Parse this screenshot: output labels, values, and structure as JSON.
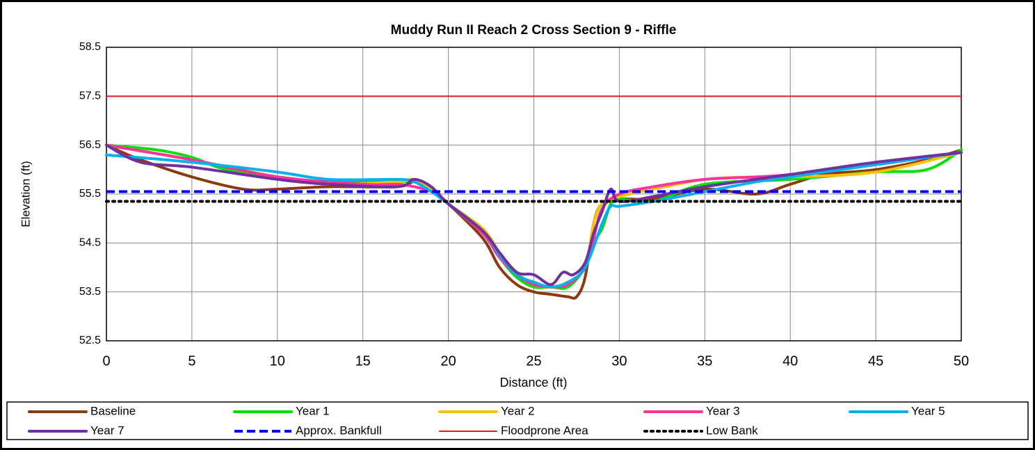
{
  "chart_data": {
    "type": "line",
    "title": "Muddy Run II Reach 2 Cross Section 9 - Riffle",
    "x_label": "Distance (ft)",
    "y_label": "Elevation (ft)",
    "xlim": [
      0,
      50
    ],
    "xticks": [
      0,
      5,
      10,
      15,
      20,
      25,
      30,
      35,
      40,
      45,
      50
    ],
    "ylim": [
      52.5,
      58.5
    ],
    "yticks": [
      52.5,
      53.5,
      54.5,
      55.5,
      56.5,
      57.5,
      58.5
    ],
    "grid": true,
    "legend": "bottom",
    "series": [
      {
        "name": "Baseline",
        "color": "#8B3A0F",
        "width": 4,
        "dash": "solid",
        "smooth": true,
        "x": [
          0,
          2,
          5,
          8,
          10,
          13,
          17,
          18,
          19,
          20,
          22,
          23,
          24,
          25,
          26,
          27,
          27.5,
          28,
          28.5,
          29,
          30,
          32,
          35,
          38,
          40,
          42,
          45,
          48,
          50
        ],
        "values": [
          56.5,
          56.2,
          55.85,
          55.6,
          55.6,
          55.65,
          55.65,
          55.75,
          55.6,
          55.3,
          54.6,
          54.0,
          53.65,
          53.5,
          53.45,
          53.4,
          53.4,
          53.8,
          54.9,
          55.3,
          55.4,
          55.4,
          55.6,
          55.5,
          55.7,
          55.9,
          56.0,
          56.2,
          56.4
        ]
      },
      {
        "name": "Year 1",
        "color": "#00E000",
        "width": 4,
        "dash": "solid",
        "smooth": true,
        "x": [
          0,
          3,
          5,
          7,
          10,
          13,
          17,
          18,
          19,
          20,
          22,
          23,
          24,
          25,
          26,
          27,
          28,
          28.5,
          29,
          29.5,
          30,
          32,
          35,
          40,
          45,
          48,
          50
        ],
        "values": [
          56.5,
          56.4,
          56.25,
          56.0,
          55.85,
          55.75,
          55.75,
          55.75,
          55.6,
          55.3,
          54.7,
          54.2,
          53.8,
          53.6,
          53.6,
          53.6,
          54.0,
          54.5,
          54.8,
          55.3,
          55.4,
          55.35,
          55.7,
          55.8,
          55.95,
          56.0,
          56.4
        ]
      },
      {
        "name": "Year 2",
        "color": "#FFC000",
        "width": 4,
        "dash": "solid",
        "smooth": true,
        "x": [
          0,
          5,
          10,
          13,
          17,
          18,
          19,
          20,
          22,
          23,
          24,
          25,
          26,
          27,
          28,
          28.5,
          29,
          30,
          32,
          35,
          38,
          40,
          45,
          50
        ],
        "values": [
          56.5,
          56.2,
          55.85,
          55.7,
          55.75,
          55.8,
          55.6,
          55.3,
          54.8,
          54.3,
          53.9,
          53.65,
          53.6,
          53.7,
          54.0,
          54.9,
          55.3,
          55.45,
          55.6,
          55.8,
          55.85,
          55.85,
          55.95,
          56.35
        ]
      },
      {
        "name": "Year 3",
        "color": "#FF3399",
        "width": 4,
        "dash": "solid",
        "smooth": true,
        "x": [
          0,
          5,
          10,
          15,
          17,
          18,
          19,
          20,
          22,
          23,
          24,
          25,
          26,
          27,
          28,
          28.5,
          29,
          30,
          32,
          35,
          38,
          40,
          45,
          50
        ],
        "values": [
          56.5,
          56.2,
          55.85,
          55.7,
          55.7,
          55.65,
          55.55,
          55.3,
          54.7,
          54.2,
          53.85,
          53.65,
          53.6,
          53.65,
          54.0,
          54.6,
          55.2,
          55.5,
          55.65,
          55.8,
          55.85,
          55.9,
          56.1,
          56.35
        ]
      },
      {
        "name": "Year 5",
        "color": "#00B0F0",
        "width": 4,
        "dash": "solid",
        "smooth": true,
        "x": [
          0,
          5,
          10,
          13,
          17,
          18,
          19,
          20,
          22,
          23,
          24,
          25,
          26,
          27,
          28,
          29,
          29.5,
          30,
          32,
          35,
          38,
          40,
          45,
          50
        ],
        "values": [
          56.3,
          56.15,
          55.95,
          55.8,
          55.8,
          55.75,
          55.55,
          55.3,
          54.75,
          54.25,
          53.85,
          53.7,
          53.6,
          53.7,
          54.0,
          54.9,
          55.25,
          55.25,
          55.35,
          55.55,
          55.75,
          55.85,
          56.1,
          56.35
        ]
      },
      {
        "name": "Year 7",
        "color": "#7030A0",
        "width": 4,
        "dash": "solid",
        "smooth": true,
        "x": [
          0,
          2,
          5,
          10,
          13,
          17,
          18,
          19,
          20,
          22,
          23,
          24,
          25,
          26,
          26.7,
          27.3,
          28,
          28.5,
          29,
          29.5,
          30,
          32,
          35,
          40,
          45,
          50
        ],
        "values": [
          56.5,
          56.15,
          56.05,
          55.8,
          55.7,
          55.65,
          55.8,
          55.65,
          55.3,
          54.75,
          54.3,
          53.9,
          53.85,
          53.65,
          53.9,
          53.85,
          54.1,
          54.7,
          55.15,
          55.6,
          55.35,
          55.45,
          55.65,
          55.9,
          56.15,
          56.35
        ]
      },
      {
        "name": "Approx. Bankfull",
        "color": "#0000FF",
        "width": 4,
        "dash": "dash",
        "smooth": false,
        "x": [
          0,
          50
        ],
        "values": [
          55.55,
          55.55
        ]
      },
      {
        "name": "Floodprone Area",
        "color": "#E41A1C",
        "width": 2,
        "dash": "solid",
        "smooth": false,
        "x": [
          0,
          50
        ],
        "values": [
          57.5,
          57.5
        ]
      },
      {
        "name": "Low Bank",
        "color": "#000000",
        "width": 4,
        "dash": "dot",
        "smooth": false,
        "x": [
          0,
          50
        ],
        "values": [
          55.35,
          55.35
        ]
      }
    ]
  }
}
